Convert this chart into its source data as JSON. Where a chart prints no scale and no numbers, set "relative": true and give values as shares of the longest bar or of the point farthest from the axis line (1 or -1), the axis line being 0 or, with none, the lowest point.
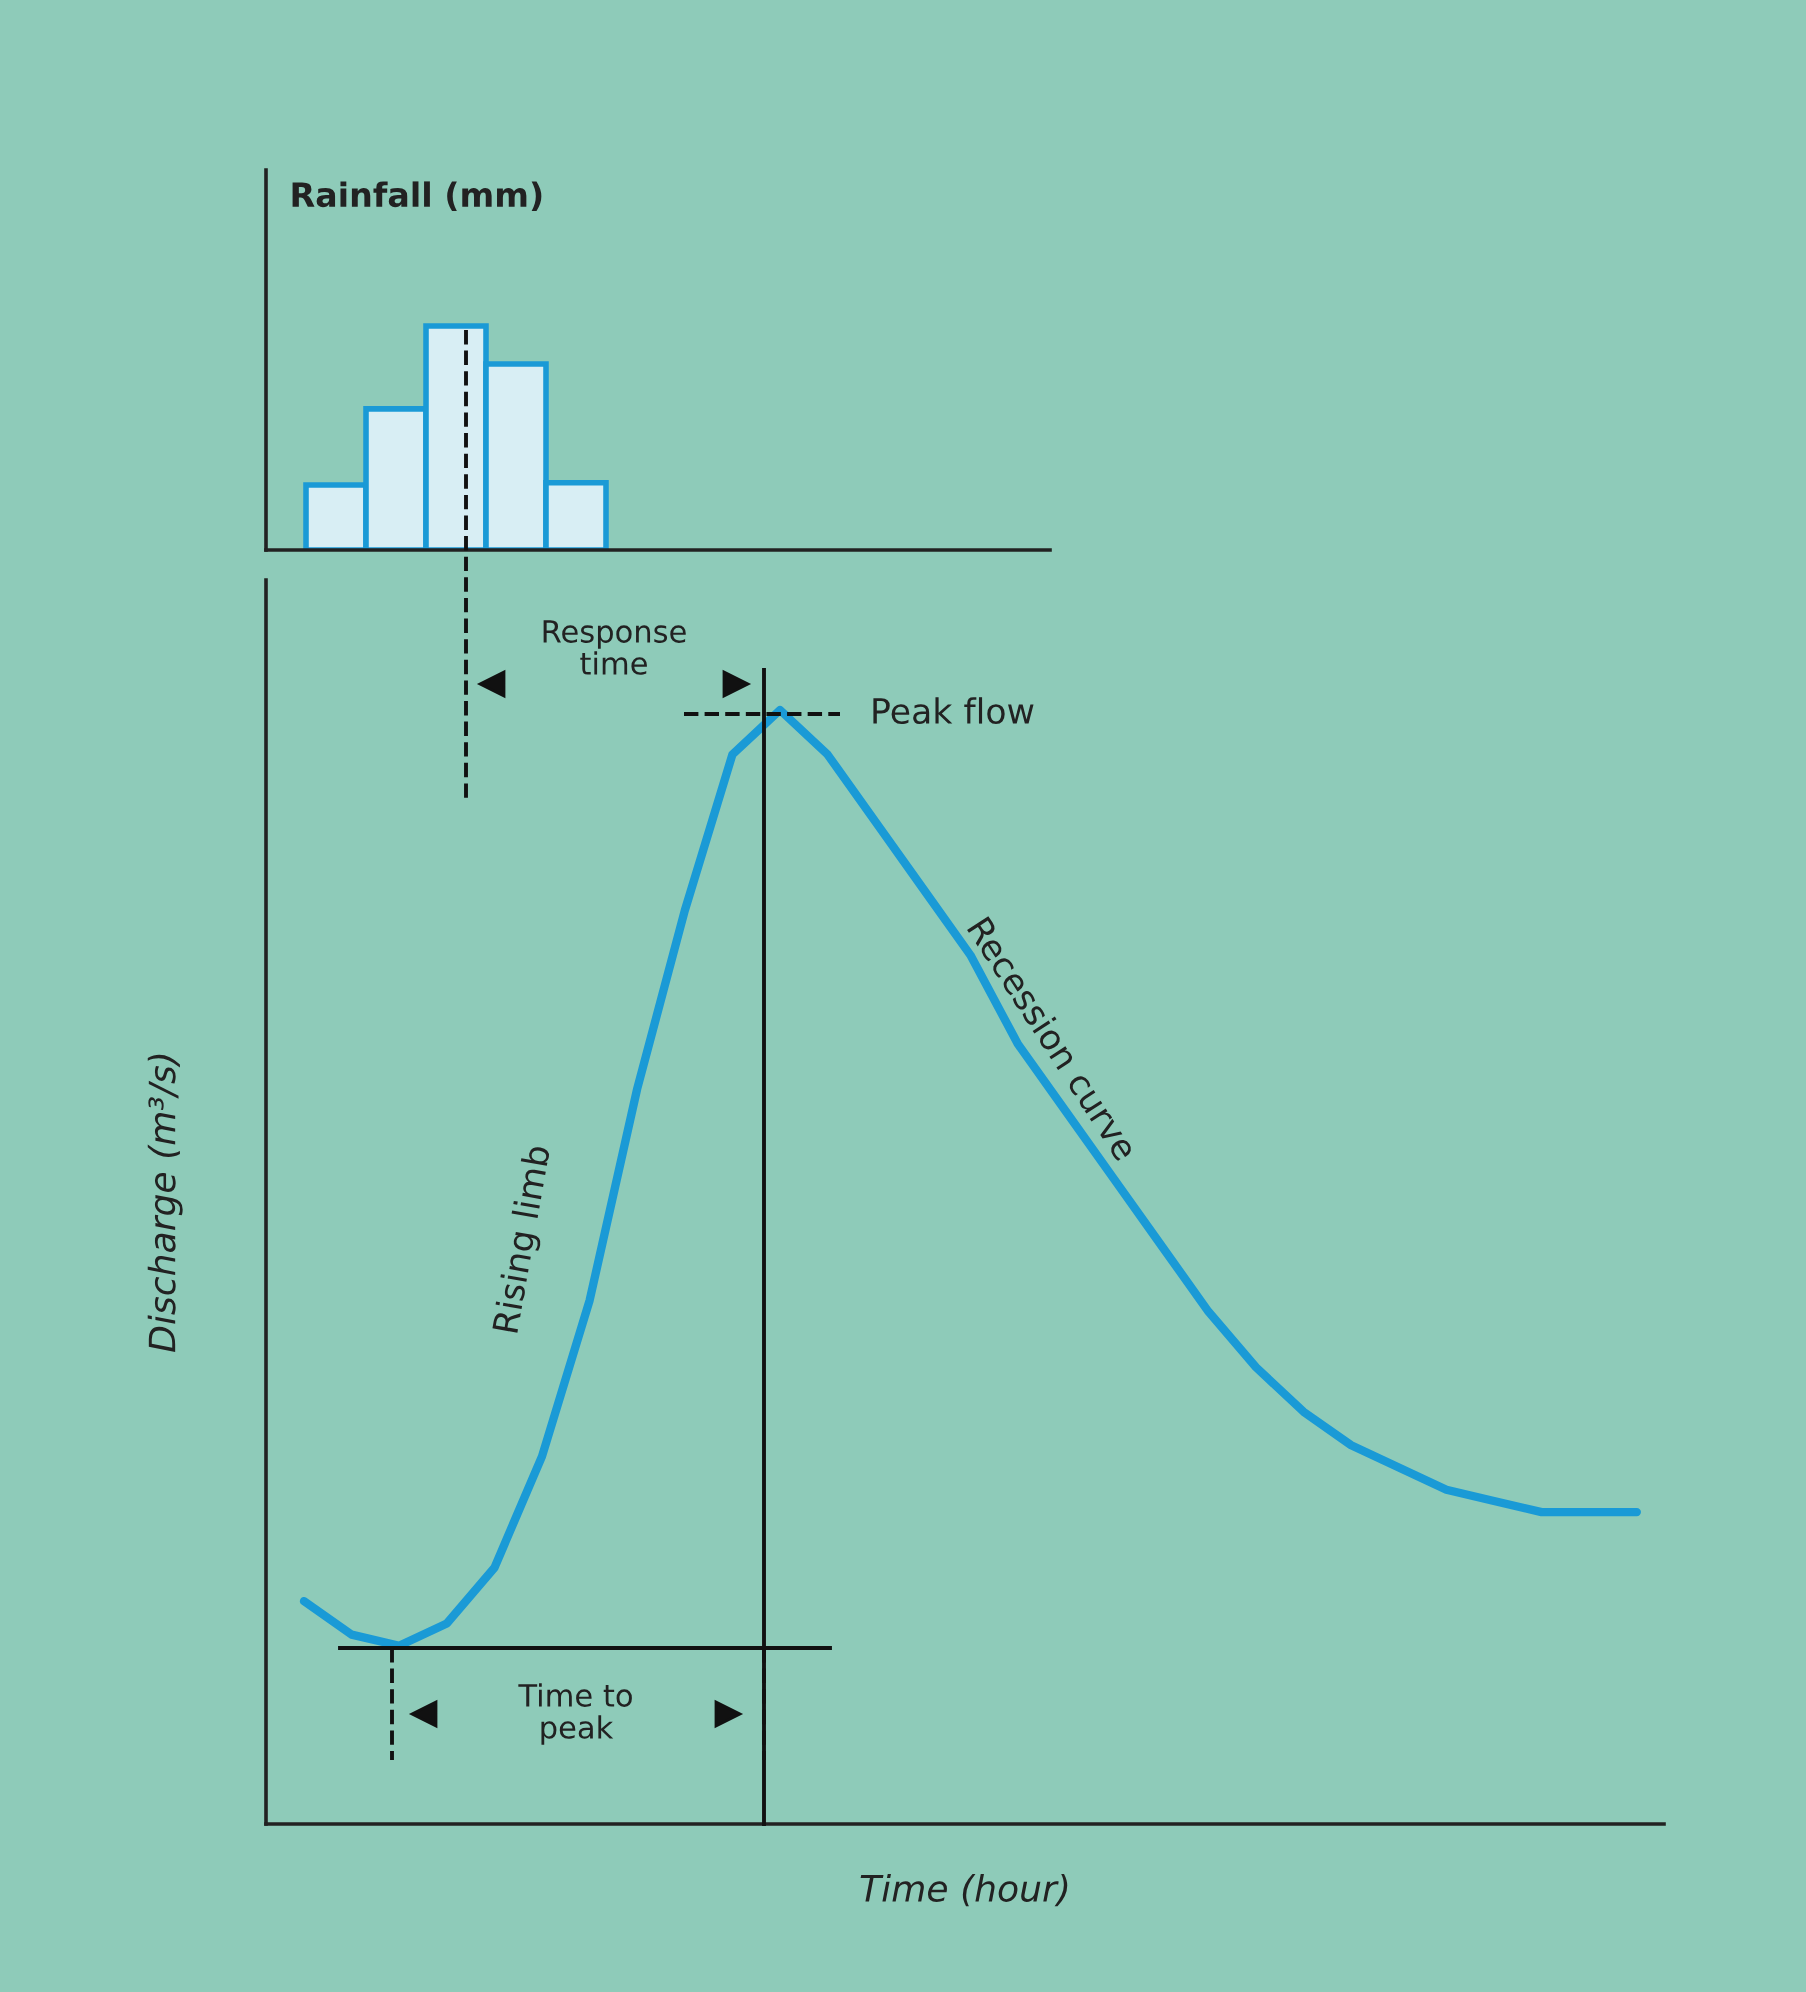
{
  "chart_data": [
    {
      "type": "bar",
      "ylabel": "Rainfall (mm)",
      "categories": [
        null,
        null,
        null,
        null,
        null
      ],
      "relative": true,
      "series": [
        {
          "color": "#d8eef4",
          "values": [
            0.29,
            0.63,
            1.0,
            0.83,
            0.3
          ]
        }
      ]
    },
    {
      "type": "line",
      "xlabel": "Time (hour)",
      "ylabel": "Discharge (m³/s)",
      "relative": true,
      "categories": [
        null,
        null,
        null,
        null,
        null,
        null,
        null,
        null,
        null,
        null,
        null,
        null,
        null,
        null,
        null,
        null,
        null,
        null,
        null,
        null,
        null,
        null,
        null,
        null,
        null,
        null,
        null,
        null,
        null
      ],
      "series": [
        {
          "color": "#1a9ad6",
          "values": [
            0.2,
            0.17,
            0.16,
            0.18,
            0.23,
            0.33,
            0.47,
            0.66,
            0.82,
            0.96,
            1.0,
            0.96,
            0.9,
            0.84,
            0.78,
            0.7,
            0.64,
            0.58,
            0.52,
            0.46,
            0.41,
            0.37,
            0.34,
            0.32,
            0.3,
            0.29,
            0.28,
            0.28,
            0.28
          ]
        }
      ],
      "annotations": [
        "Response\ntime",
        "Peak flow",
        "Rising limb",
        "Recession curve",
        "Time to\npeak"
      ]
    }
  ]
}
